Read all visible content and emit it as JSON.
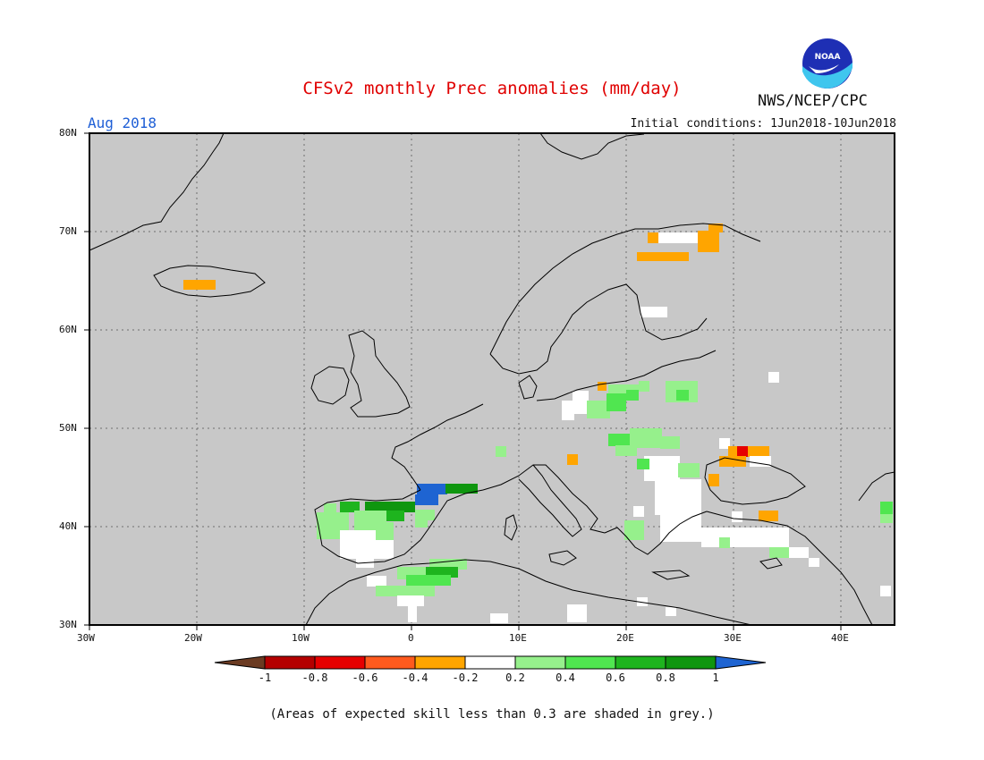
{
  "header": {
    "title": "CFSv2 monthly Prec anomalies (mm/day)",
    "month": "Aug 2018",
    "initial_conditions": "Initial conditions: 1Jun2018-10Jun2018",
    "agency": "NWS/NCEP/CPC",
    "logo_text": "NOAA"
  },
  "map": {
    "region": "Europe",
    "lon_range": [
      -30,
      45
    ],
    "lat_range": [
      30,
      80
    ],
    "lat_labels": [
      "80N",
      "70N",
      "60N",
      "50N",
      "40N",
      "30N"
    ],
    "lon_labels": [
      "30W",
      "20W",
      "10W",
      "0",
      "10E",
      "20E",
      "30E",
      "40E"
    ],
    "background_color": "#c8c8c8",
    "coastline_color": "#000000"
  },
  "legend": {
    "tick_labels": [
      "-1",
      "-0.8",
      "-0.6",
      "-0.4",
      "-0.2",
      "0.2",
      "0.4",
      "0.6",
      "0.8",
      "1"
    ],
    "colors": [
      "#6b3b22",
      "#b40000",
      "#e60000",
      "#ff5a1e",
      "#ffa500",
      "#ffffff",
      "#96f08c",
      "#50e650",
      "#1eb41e",
      "#0f960f",
      "#1e64d2"
    ]
  },
  "footnote": "(Areas of expected skill less than 0.3 are shaded in grey.)"
}
